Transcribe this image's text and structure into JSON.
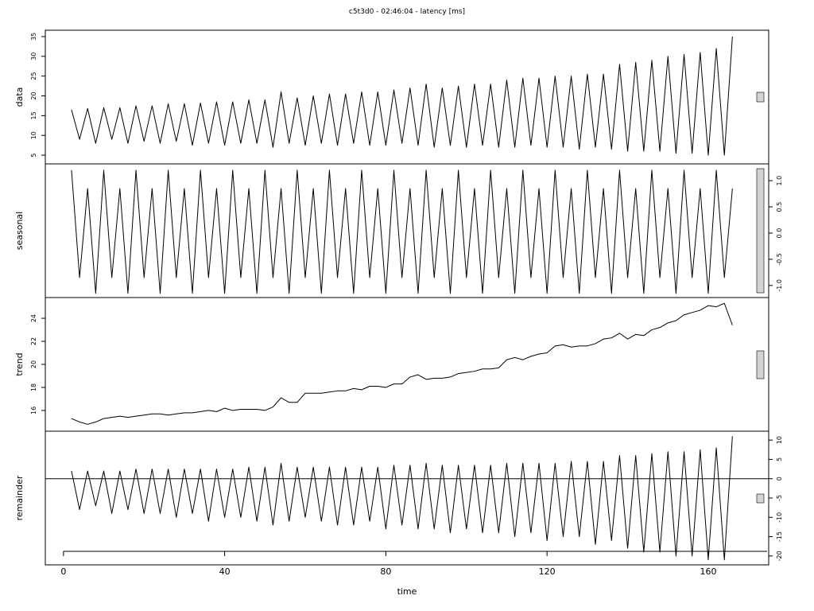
{
  "chart_data": {
    "type": "line",
    "title": "c5t3d0 - 02:46:04 - latency [ms]",
    "x_label": "time",
    "xlim": [
      -4.5,
      175
    ],
    "xticks": [
      0,
      40,
      80,
      120,
      160
    ],
    "x": [
      2,
      4,
      6,
      8,
      10,
      12,
      14,
      16,
      18,
      20,
      22,
      24,
      26,
      28,
      30,
      32,
      34,
      36,
      38,
      40,
      42,
      44,
      46,
      48,
      50,
      52,
      54,
      56,
      58,
      60,
      62,
      64,
      66,
      68,
      70,
      72,
      74,
      76,
      78,
      80,
      82,
      84,
      86,
      88,
      90,
      92,
      94,
      96,
      98,
      100,
      102,
      104,
      106,
      108,
      110,
      112,
      114,
      116,
      118,
      120,
      122,
      124,
      126,
      128,
      130,
      132,
      134,
      136,
      138,
      140,
      142,
      144,
      146,
      148,
      150,
      152,
      154,
      156,
      158,
      160,
      162,
      164,
      166
    ],
    "panels": [
      {
        "label": "data",
        "side": "left",
        "ylim": [
          2.8,
          36.6
        ],
        "yticks": [
          5,
          10,
          15,
          20,
          25,
          30,
          35
        ],
        "values": [
          16.5,
          9,
          16.8,
          8,
          17,
          9,
          17,
          8,
          17.5,
          8.5,
          17.5,
          8,
          18,
          8.5,
          18,
          7.5,
          18.2,
          8,
          18.5,
          7.5,
          18.5,
          8,
          19,
          8,
          19,
          7,
          21,
          8,
          19.5,
          7.5,
          20,
          8,
          20.5,
          7.5,
          20.5,
          8,
          21,
          7.5,
          21,
          7.5,
          21.5,
          8,
          22,
          7.5,
          23,
          7,
          22,
          7.5,
          22.5,
          7,
          23,
          7.5,
          23,
          7,
          24,
          7,
          24.5,
          7.5,
          24.5,
          7,
          25,
          7,
          25,
          6.5,
          25.5,
          7,
          25.5,
          6.5,
          28,
          6,
          28.5,
          6,
          29,
          6,
          30,
          5.5,
          30.5,
          5.5,
          31,
          5,
          32,
          5,
          35
        ]
      },
      {
        "label": "seasonal",
        "side": "right",
        "ylim": [
          -1.23,
          1.32
        ],
        "yticks": [
          {
            "value": -1,
            "label": "-1.0"
          },
          {
            "value": -0.5,
            "label": "-0.5"
          },
          {
            "value": 0,
            "label": "0.0"
          },
          {
            "value": 0.5,
            "label": "0.5"
          },
          {
            "value": 1,
            "label": "1.0"
          }
        ],
        "values": [
          1.2,
          -0.85,
          0.85,
          -1.15,
          1.2,
          -0.85,
          0.85,
          -1.15,
          1.2,
          -0.85,
          0.85,
          -1.15,
          1.2,
          -0.85,
          0.85,
          -1.15,
          1.2,
          -0.85,
          0.85,
          -1.15,
          1.2,
          -0.85,
          0.85,
          -1.15,
          1.2,
          -0.85,
          0.85,
          -1.15,
          1.2,
          -0.85,
          0.85,
          -1.15,
          1.2,
          -0.85,
          0.85,
          -1.15,
          1.2,
          -0.85,
          0.85,
          -1.15,
          1.2,
          -0.85,
          0.85,
          -1.15,
          1.2,
          -0.85,
          0.85,
          -1.15,
          1.2,
          -0.85,
          0.85,
          -1.15,
          1.2,
          -0.85,
          0.85,
          -1.15,
          1.2,
          -0.85,
          0.85,
          -1.15,
          1.2,
          -0.85,
          0.85,
          -1.15,
          1.2,
          -0.85,
          0.85,
          -1.15,
          1.2,
          -0.85,
          0.85,
          -1.15,
          1.2,
          -0.85,
          0.85,
          -1.15,
          1.2,
          -0.85,
          0.85,
          -1.15,
          1.2,
          -0.85,
          0.85
        ]
      },
      {
        "label": "trend",
        "side": "left",
        "ylim": [
          14.2,
          25.8
        ],
        "yticks": [
          16,
          18,
          20,
          22,
          24
        ],
        "values": [
          15.3,
          15.0,
          14.8,
          15.0,
          15.3,
          15.4,
          15.5,
          15.4,
          15.5,
          15.6,
          15.7,
          15.7,
          15.6,
          15.7,
          15.8,
          15.8,
          15.9,
          16.0,
          15.9,
          16.2,
          16.0,
          16.1,
          16.1,
          16.1,
          16.0,
          16.3,
          17.1,
          16.7,
          16.7,
          17.5,
          17.5,
          17.5,
          17.6,
          17.7,
          17.7,
          17.9,
          17.8,
          18.1,
          18.1,
          18.0,
          18.3,
          18.3,
          18.9,
          19.1,
          18.7,
          18.8,
          18.8,
          18.9,
          19.2,
          19.3,
          19.4,
          19.6,
          19.6,
          19.7,
          20.4,
          20.6,
          20.4,
          20.7,
          20.9,
          21.0,
          21.6,
          21.7,
          21.5,
          21.6,
          21.6,
          21.8,
          22.2,
          22.3,
          22.7,
          22.2,
          22.6,
          22.5,
          23.0,
          23.2,
          23.6,
          23.8,
          24.3,
          24.5,
          24.7,
          25.1,
          25.0,
          25.3,
          23.4
        ]
      },
      {
        "label": "remainder",
        "side": "right",
        "ylim": [
          -22.3,
          12.3
        ],
        "yticks": [
          -20,
          -15,
          -10,
          -5,
          0,
          5,
          10
        ],
        "values": [
          2,
          -8,
          2,
          -7,
          2,
          -9,
          2,
          -8,
          2.5,
          -9,
          2.5,
          -9,
          2.5,
          -10,
          2.5,
          -9,
          2.5,
          -11,
          2.5,
          -10,
          2.5,
          -10,
          3,
          -11,
          3,
          -12,
          4,
          -11,
          3,
          -10,
          3,
          -11,
          3,
          -12,
          3,
          -12,
          3,
          -11,
          3,
          -13,
          3.5,
          -12,
          3.5,
          -13,
          4,
          -13,
          3.5,
          -14,
          3.5,
          -13,
          3.5,
          -14,
          3.5,
          -14,
          4,
          -15,
          4,
          -14,
          4,
          -16,
          4,
          -15,
          4.5,
          -15,
          4.5,
          -17,
          4.5,
          -16,
          6,
          -18,
          6,
          -19,
          6.5,
          -19,
          7,
          -20,
          7,
          -20,
          7.5,
          -21,
          8,
          -21,
          11
        ]
      }
    ]
  }
}
